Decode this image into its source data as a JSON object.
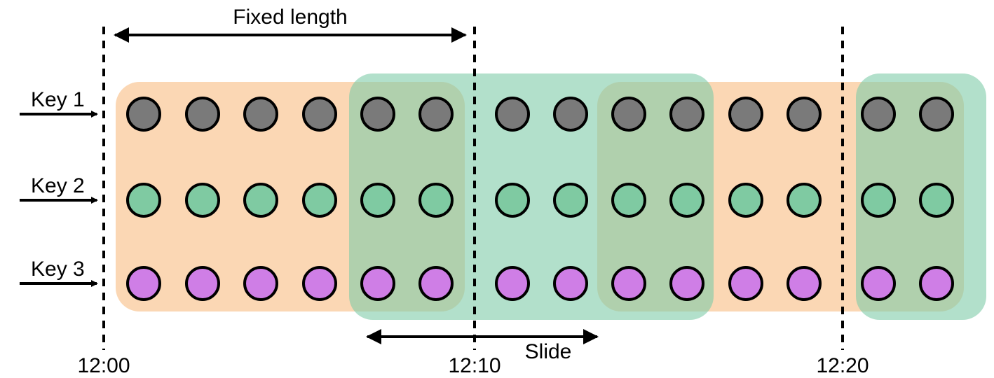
{
  "labels": {
    "fixed_length": "Fixed length",
    "slide": "Slide"
  },
  "keys": [
    {
      "label": "Key 1",
      "color": "#7a7a7a"
    },
    {
      "label": "Key 2",
      "color": "#7fcaa2"
    },
    {
      "label": "Key 3",
      "color": "#cf7ee6"
    }
  ],
  "times": [
    "12:00",
    "12:10",
    "12:20"
  ],
  "colors": {
    "window_a": "#fbd7b4",
    "window_b": "#7ecba9",
    "stroke": "#000000"
  },
  "dots_per_key": 14
}
